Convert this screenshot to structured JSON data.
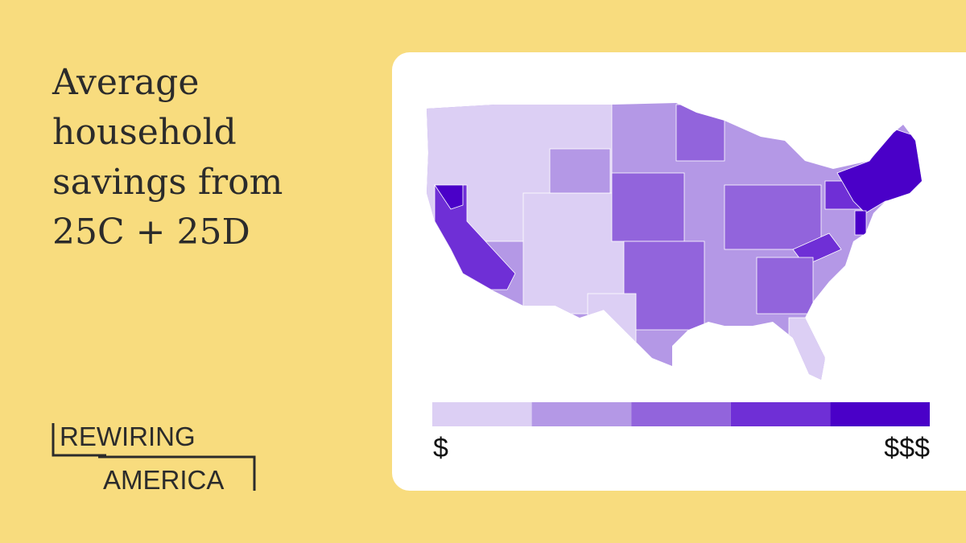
{
  "title": "Average household savings from 25C + 25D",
  "logo": {
    "line1": "REWIRING",
    "line2": "AMERICA"
  },
  "legend": {
    "colors": [
      "#dccff4",
      "#b498e6",
      "#9264dc",
      "#6f2fd6",
      "#4a00c8"
    ],
    "low_label": "$",
    "high_label": "$$$"
  }
}
